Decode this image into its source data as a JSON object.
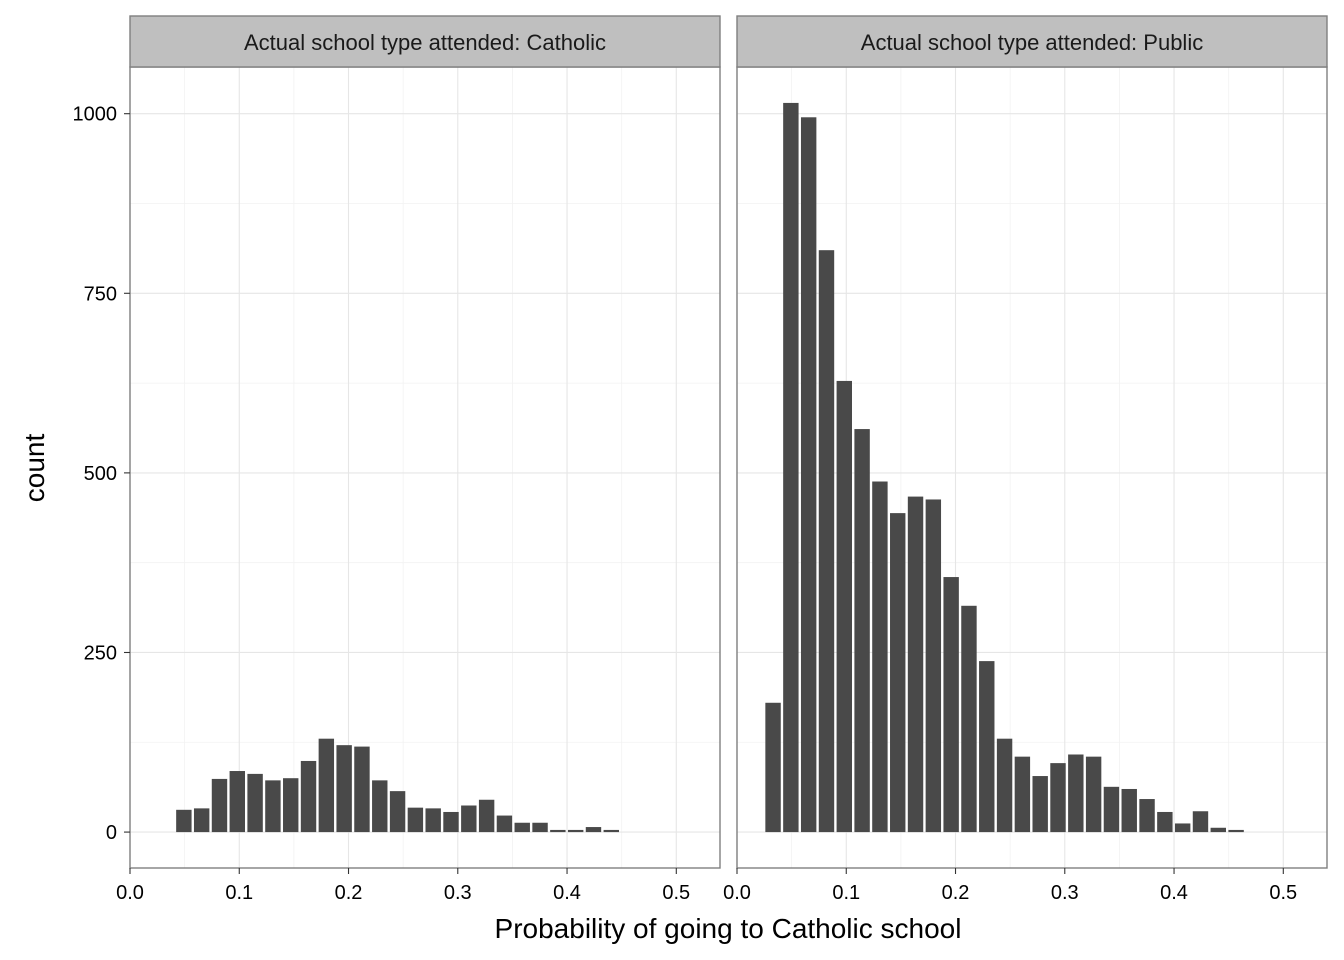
{
  "chart_data": {
    "type": "bar",
    "xlabel": "Probability of going to Catholic school",
    "ylabel": "count",
    "xlim": [
      0,
      0.54
    ],
    "ylim": [
      -50,
      1065
    ],
    "x_ticks": [
      0.0,
      0.1,
      0.2,
      0.3,
      0.4,
      0.5
    ],
    "x_tick_labels": [
      "0.0",
      "0.1",
      "0.2",
      "0.3",
      "0.4",
      "0.5"
    ],
    "y_ticks": [
      0,
      250,
      500,
      750,
      1000
    ],
    "y_tick_labels": [
      "0",
      "250",
      "500",
      "750",
      "1000"
    ],
    "bin_width": 0.0163,
    "grid": true,
    "bar_color": "#494949",
    "strip_color": "#bfbfbf",
    "panels": [
      {
        "label": "Actual school type attended: Catholic",
        "x": [
          0.0493,
          0.0656,
          0.0819,
          0.0982,
          0.1145,
          0.1308,
          0.1471,
          0.1634,
          0.1797,
          0.196,
          0.2123,
          0.2286,
          0.2449,
          0.2612,
          0.2775,
          0.2938,
          0.3101,
          0.3264,
          0.3427,
          0.359,
          0.3753,
          0.3916,
          0.4079,
          0.4242,
          0.4405
        ],
        "values": [
          31,
          33,
          74,
          85,
          81,
          72,
          75,
          99,
          130,
          121,
          119,
          72,
          57,
          34,
          33,
          28,
          37,
          45,
          23,
          13,
          13,
          3,
          3,
          7,
          3
        ]
      },
      {
        "label": "Actual school type attended: Public",
        "x": [
          0.033,
          0.0493,
          0.0656,
          0.0819,
          0.0982,
          0.1145,
          0.1308,
          0.1471,
          0.1634,
          0.1797,
          0.196,
          0.2123,
          0.2286,
          0.2449,
          0.2612,
          0.2775,
          0.2938,
          0.3101,
          0.3264,
          0.3427,
          0.359,
          0.3753,
          0.3916,
          0.4079,
          0.4242,
          0.4405,
          0.4568
        ],
        "values": [
          180,
          1015,
          995,
          810,
          628,
          561,
          488,
          444,
          467,
          463,
          355,
          315,
          238,
          130,
          105,
          78,
          96,
          108,
          105,
          63,
          60,
          46,
          28,
          12,
          29,
          6,
          3
        ]
      }
    ]
  }
}
